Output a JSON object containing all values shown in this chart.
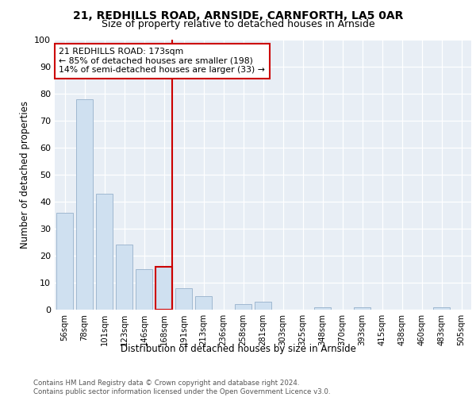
{
  "title1": "21, REDHILLS ROAD, ARNSIDE, CARNFORTH, LA5 0AR",
  "title2": "Size of property relative to detached houses in Arnside",
  "xlabel": "Distribution of detached houses by size in Arnside",
  "ylabel": "Number of detached properties",
  "categories": [
    "56sqm",
    "78sqm",
    "101sqm",
    "123sqm",
    "146sqm",
    "168sqm",
    "191sqm",
    "213sqm",
    "236sqm",
    "258sqm",
    "281sqm",
    "303sqm",
    "325sqm",
    "348sqm",
    "370sqm",
    "393sqm",
    "415sqm",
    "438sqm",
    "460sqm",
    "483sqm",
    "505sqm"
  ],
  "values": [
    36,
    78,
    43,
    24,
    15,
    16,
    8,
    5,
    0,
    2,
    3,
    0,
    0,
    1,
    0,
    1,
    0,
    0,
    0,
    1,
    0
  ],
  "bar_color": "#cfe0f0",
  "bar_edge_color": "#a0b8d0",
  "highlight_bar_index": 5,
  "highlight_bar_edge_color": "#cc0000",
  "vline_color": "#cc0000",
  "annotation_text": "21 REDHILLS ROAD: 173sqm\n← 85% of detached houses are smaller (198)\n14% of semi-detached houses are larger (33) →",
  "annotation_box_color": "#ffffff",
  "annotation_box_edge_color": "#cc0000",
  "ylim": [
    0,
    100
  ],
  "yticks": [
    0,
    10,
    20,
    30,
    40,
    50,
    60,
    70,
    80,
    90,
    100
  ],
  "footer": "Contains HM Land Registry data © Crown copyright and database right 2024.\nContains public sector information licensed under the Open Government Licence v3.0.",
  "fig_bg_color": "#ffffff",
  "plot_bg_color": "#e8eef5"
}
